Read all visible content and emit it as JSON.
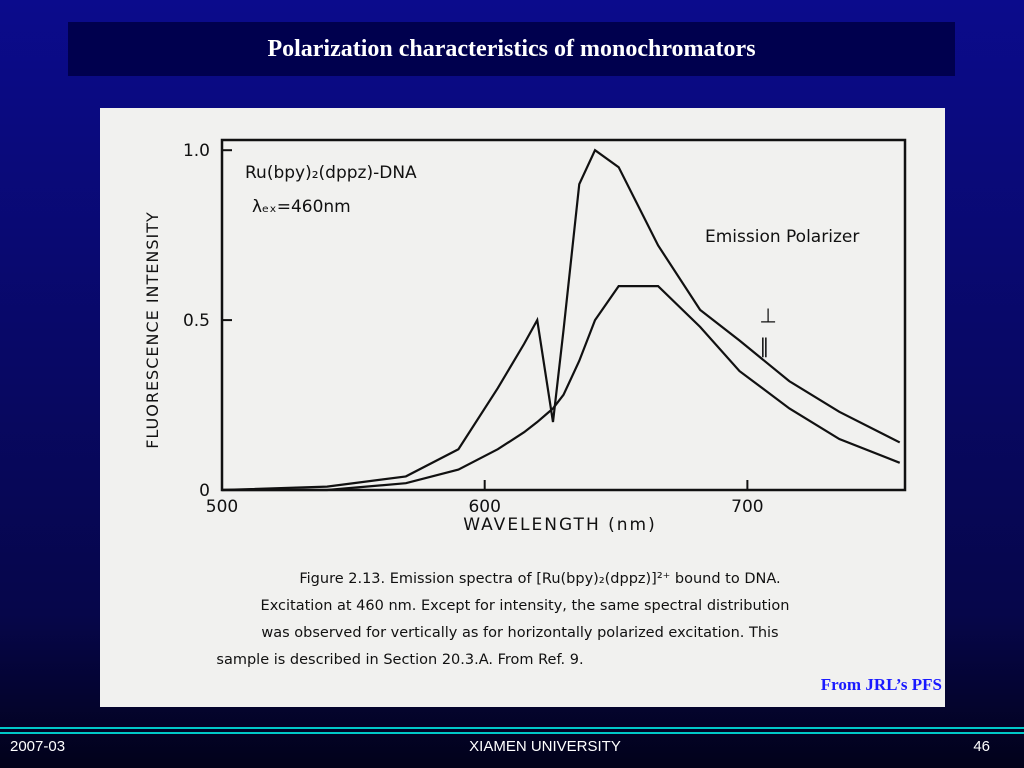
{
  "header": {
    "title": "Polarization characteristics of monochromators"
  },
  "chart_data": {
    "type": "line",
    "title": "Ru(bpy)₂(dppz)-DNA",
    "subtitle": "λₑₓ=460nm",
    "annotation": "Emission Polarizer",
    "xlabel": "WAVELENGTH (nm)",
    "ylabel": "FLUORESCENCE INTENSITY",
    "x": [
      500,
      540,
      570,
      590,
      605,
      615,
      620,
      623,
      626,
      630,
      636,
      642,
      651,
      666,
      682,
      697,
      716,
      735,
      758
    ],
    "series": [
      {
        "name": "⊥",
        "color": "#111111",
        "values": [
          0,
          0.01,
          0.04,
          0.12,
          0.3,
          0.43,
          0.5,
          0.35,
          0.2,
          0.47,
          0.9,
          1.0,
          0.95,
          0.72,
          0.53,
          0.44,
          0.32,
          0.23,
          0.14
        ]
      },
      {
        "name": "∥",
        "color": "#111111",
        "values": [
          0,
          0,
          0.02,
          0.06,
          0.12,
          0.17,
          0.2,
          0.22,
          0.24,
          0.28,
          0.38,
          0.5,
          0.6,
          0.6,
          0.48,
          0.35,
          0.24,
          0.15,
          0.08
        ]
      }
    ],
    "xlim": [
      500,
      760
    ],
    "xticks": [
      500,
      600,
      700
    ],
    "ylim": [
      0,
      1.03
    ],
    "yticks": [
      0,
      0.5,
      {
        "value": 1,
        "label": "1.0"
      }
    ],
    "grid": false
  },
  "caption": [
    "Figure 2.13.  Emission spectra of [Ru(bpy)₂(dppz)]²⁺ bound to DNA.",
    "Excitation at 460 nm. Except for intensity, the same spectral distribution",
    "was observed for vertically as for horizontally polarized excitation. This",
    "sample is described in Section 20.3.A. From Ref. 9."
  ],
  "source": "From JRL’s PFS",
  "footer": {
    "date": "2007-03",
    "org": "XIAMEN UNIVERSITY",
    "page": "46"
  }
}
